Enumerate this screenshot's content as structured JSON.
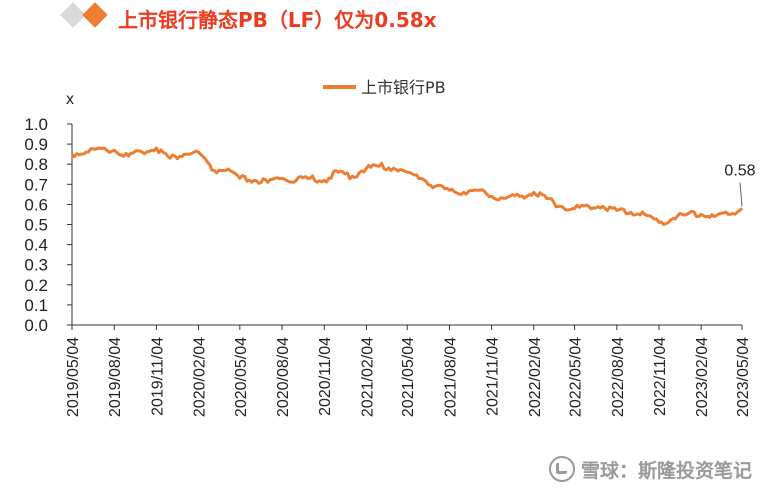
{
  "header": {
    "title": "上市银行静态PB（LF）仅为0.58x",
    "colors": {
      "grey_diamond": "#d9d9d9",
      "orange_diamond": "#ed7d31",
      "title": "#ed3b1f"
    }
  },
  "watermark": {
    "text": "雪球：斯隆投资笔记",
    "icon": "snowball-logo-icon"
  },
  "chart_data": {
    "type": "line",
    "title": "",
    "ylabel": "x",
    "xlabel": "",
    "ylim": [
      0,
      1.0
    ],
    "yticks": [
      "0.0",
      "0.1",
      "0.2",
      "0.3",
      "0.4",
      "0.5",
      "0.6",
      "0.7",
      "0.8",
      "0.9",
      "1.0"
    ],
    "x_tick_labels": [
      "2019/05/04",
      "2019/08/04",
      "2019/11/04",
      "2020/02/04",
      "2020/05/04",
      "2020/08/04",
      "2020/11/04",
      "2021/02/04",
      "2021/05/04",
      "2021/08/04",
      "2021/11/04",
      "2022/02/04",
      "2022/05/04",
      "2022/08/04",
      "2022/11/04",
      "2023/02/04",
      "2023/05/04"
    ],
    "legend": {
      "position": "top-center"
    },
    "grid": false,
    "line_color": "#ed7d31",
    "annotation": {
      "text": "0.58",
      "value": 0.58
    },
    "series": [
      {
        "name": "上市银行PB",
        "x": [
          "2019/05/04",
          "2019/06/04",
          "2019/07/04",
          "2019/08/04",
          "2019/09/04",
          "2019/10/04",
          "2019/11/04",
          "2019/12/04",
          "2020/01/04",
          "2020/02/04",
          "2020/03/04",
          "2020/04/04",
          "2020/05/04",
          "2020/06/04",
          "2020/07/04",
          "2020/08/04",
          "2020/09/04",
          "2020/10/04",
          "2020/11/04",
          "2020/12/04",
          "2021/01/04",
          "2021/02/04",
          "2021/03/04",
          "2021/04/04",
          "2021/05/04",
          "2021/06/04",
          "2021/07/04",
          "2021/08/04",
          "2021/09/04",
          "2021/10/04",
          "2021/11/04",
          "2021/12/04",
          "2022/01/04",
          "2022/02/04",
          "2022/03/04",
          "2022/04/04",
          "2022/05/04",
          "2022/06/04",
          "2022/07/04",
          "2022/08/04",
          "2022/09/04",
          "2022/10/04",
          "2022/11/04",
          "2022/12/04",
          "2023/01/04",
          "2023/02/04",
          "2023/03/04",
          "2023/04/04",
          "2023/05/04"
        ],
        "values": [
          0.85,
          0.86,
          0.88,
          0.87,
          0.84,
          0.86,
          0.88,
          0.83,
          0.85,
          0.86,
          0.77,
          0.77,
          0.73,
          0.72,
          0.71,
          0.73,
          0.72,
          0.73,
          0.72,
          0.76,
          0.74,
          0.78,
          0.79,
          0.78,
          0.76,
          0.73,
          0.69,
          0.67,
          0.66,
          0.67,
          0.64,
          0.63,
          0.64,
          0.66,
          0.63,
          0.59,
          0.58,
          0.59,
          0.59,
          0.57,
          0.56,
          0.55,
          0.51,
          0.53,
          0.55,
          0.55,
          0.54,
          0.55,
          0.58
        ]
      }
    ]
  }
}
